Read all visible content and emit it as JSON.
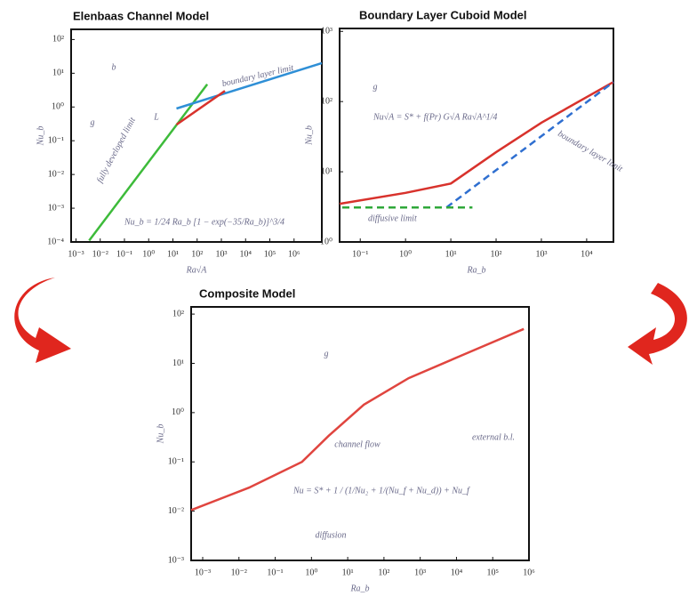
{
  "chart_data": [
    {
      "type": "line",
      "title": "Elenbaas Channel Model",
      "xlabel": "Ra√A",
      "ylabel": "Nu_b",
      "xscale": "log",
      "yscale": "log",
      "xlim": [
        0.00063,
        14000000
      ],
      "ylim": [
        0.0001,
        200
      ],
      "xticks": [
        {
          "value": 0.001,
          "label": "10⁻³"
        },
        {
          "value": 0.01,
          "label": "10⁻²"
        },
        {
          "value": 0.1,
          "label": "10⁻¹"
        },
        {
          "value": 1,
          "label": "10⁰"
        },
        {
          "value": 10,
          "label": "10¹"
        },
        {
          "value": 100,
          "label": "10²"
        },
        {
          "value": 1000,
          "label": "10³"
        },
        {
          "value": 10000,
          "label": "10⁴"
        },
        {
          "value": 100000,
          "label": "10⁵"
        },
        {
          "value": 1000000,
          "label": "10⁶"
        }
      ],
      "yticks": [
        {
          "value": 0.0001,
          "label": "10⁻⁴"
        },
        {
          "value": 0.001,
          "label": "10⁻³"
        },
        {
          "value": 0.01,
          "label": "10⁻²"
        },
        {
          "value": 0.1,
          "label": "10⁻¹"
        },
        {
          "value": 1,
          "label": "10⁰"
        },
        {
          "value": 10,
          "label": "10¹"
        },
        {
          "value": 100,
          "label": "10²"
        }
      ],
      "series": [
        {
          "name": "fully developed limit",
          "color": "#3dbb3a",
          "x": [
            0.0035,
            260
          ],
          "values": [
            0.00011,
            4.7
          ]
        },
        {
          "name": "boundary layer limit",
          "color": "#2f8fd6",
          "x": [
            14,
            14000000
          ],
          "values": [
            0.9,
            20
          ]
        },
        {
          "color": "#d8322c",
          "x": [
            14,
            1400
          ],
          "values": [
            0.3,
            3
          ]
        }
      ],
      "annotations": [
        "b",
        "L",
        "g"
      ],
      "formula": "Nu_b = 1/24 Ra_b [1 − exp(−35/Ra_b)]^3/4"
    },
    {
      "type": "line",
      "title": "Boundary Layer Cuboid Model",
      "xlabel": "Ra_b",
      "ylabel": "Nu_b",
      "xscale": "log",
      "yscale": "log",
      "xlim": [
        0.035,
        39000
      ],
      "ylim": [
        1,
        1100
      ],
      "xticks": [
        {
          "value": 0.1,
          "label": "10⁻¹"
        },
        {
          "value": 1,
          "label": "10⁰"
        },
        {
          "value": 10,
          "label": "10¹"
        },
        {
          "value": 100,
          "label": "10²"
        },
        {
          "value": 1000,
          "label": "10³"
        },
        {
          "value": 10000,
          "label": "10⁴"
        }
      ],
      "yticks": [
        {
          "value": 1,
          "label": "10⁰"
        },
        {
          "value": 10,
          "label": "10¹"
        },
        {
          "value": 100,
          "label": "10²"
        },
        {
          "value": 1000,
          "label": "10³"
        }
      ],
      "series": [
        {
          "color": "#d8322c",
          "x": [
            0.035,
            1,
            10,
            100,
            1000,
            39000
          ],
          "values": [
            3.5,
            5,
            6.8,
            19,
            50,
            190
          ]
        },
        {
          "name": "boundary layer limit",
          "color": "#2f6fd0",
          "dashed": true,
          "x": [
            8,
            39000
          ],
          "values": [
            3.1,
            190
          ]
        },
        {
          "name": "diffusive limit",
          "color": "#2fa83a",
          "dashed": true,
          "x": [
            0.04,
            30
          ],
          "values": [
            3.1,
            3.1
          ]
        }
      ],
      "annotations": [
        "g"
      ],
      "formula": "Nu√A = S* + f(Pr) G√A Ra√A^1/4"
    },
    {
      "type": "line",
      "title": "Composite Model",
      "xlabel": "Ra_b",
      "ylabel": "Nu_b",
      "xscale": "log",
      "yscale": "log",
      "xlim": [
        0.00048,
        1000000
      ],
      "ylim": [
        0.001,
        140
      ],
      "xticks": [
        {
          "value": 0.001,
          "label": "10⁻³"
        },
        {
          "value": 0.01,
          "label": "10⁻²"
        },
        {
          "value": 0.1,
          "label": "10⁻¹"
        },
        {
          "value": 1,
          "label": "10⁰"
        },
        {
          "value": 10,
          "label": "10¹"
        },
        {
          "value": 100,
          "label": "10²"
        },
        {
          "value": 1000,
          "label": "10³"
        },
        {
          "value": 10000,
          "label": "10⁴"
        },
        {
          "value": 100000,
          "label": "10⁵"
        },
        {
          "value": 1000000,
          "label": "10⁶"
        }
      ],
      "yticks": [
        {
          "value": 0.001,
          "label": "10⁻³"
        },
        {
          "value": 0.01,
          "label": "10⁻²"
        },
        {
          "value": 0.1,
          "label": "10⁻¹"
        },
        {
          "value": 1,
          "label": "10⁰"
        },
        {
          "value": 10,
          "label": "10¹"
        },
        {
          "value": 100,
          "label": "10²"
        }
      ],
      "series": [
        {
          "color": "#e0453f",
          "x": [
            0.00048,
            0.019,
            0.55,
            3,
            28,
            480,
            14000,
            720000
          ],
          "values": [
            0.0105,
            0.03,
            0.1,
            0.34,
            1.45,
            5,
            14.5,
            50
          ]
        }
      ],
      "annotations": [
        "g",
        "channel flow",
        "external b.l.",
        "diffusion"
      ],
      "formula": "Nu = S* + 1 / (1/Nu₂ + 1/(Nu_f + Nu_d)) + Nu_f"
    }
  ]
}
